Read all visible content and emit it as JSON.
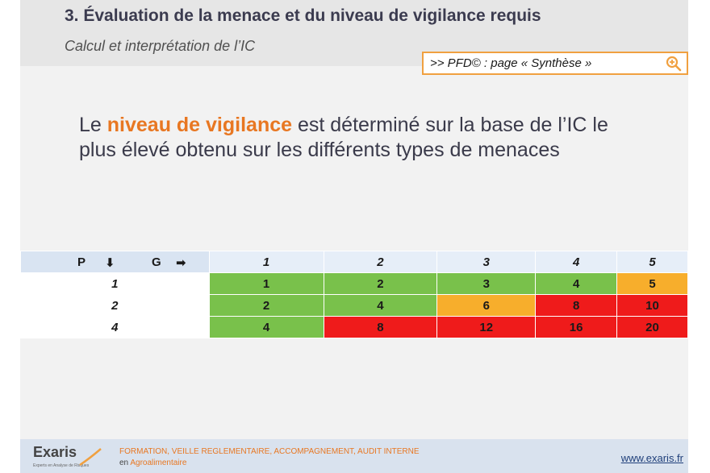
{
  "slide": {
    "title": "3. Évaluation de la menace et du niveau de vigilance requis",
    "subtitle": "Calcul et interprétation de l’IC",
    "reference": ">> PFD© : page « Synthèse »",
    "body": {
      "prefix": "Le ",
      "highlight": "niveau de vigilance",
      "suffix": " est déterminé sur la base de l’IC le plus élevé obtenu sur les différents types de menaces"
    }
  },
  "grid": {
    "corner_p": "P",
    "corner_g": "G",
    "columns": [
      "1",
      "2",
      "3",
      "4",
      "5"
    ],
    "rows": [
      {
        "label": "1",
        "cells": [
          {
            "value": "1",
            "level": "green"
          },
          {
            "value": "2",
            "level": "green"
          },
          {
            "value": "3",
            "level": "green"
          },
          {
            "value": "4",
            "level": "green"
          },
          {
            "value": "5",
            "level": "orange"
          }
        ]
      },
      {
        "label": "2",
        "cells": [
          {
            "value": "2",
            "level": "green"
          },
          {
            "value": "4",
            "level": "green"
          },
          {
            "value": "6",
            "level": "orange"
          },
          {
            "value": "8",
            "level": "red"
          },
          {
            "value": "10",
            "level": "red"
          }
        ]
      },
      {
        "label": "4",
        "cells": [
          {
            "value": "4",
            "level": "green"
          },
          {
            "value": "8",
            "level": "red"
          },
          {
            "value": "12",
            "level": "red"
          },
          {
            "value": "16",
            "level": "red"
          },
          {
            "value": "20",
            "level": "red"
          }
        ]
      }
    ],
    "colors": {
      "green": "#79c14b",
      "orange": "#f7ae2c",
      "red": "#ef1b1b"
    }
  },
  "footer": {
    "logo": "Exaris",
    "logo_tagline": "Experts en Analyse de Risques",
    "line1": "FORMATION, VEILLE REGLEMENTAIRE, ACCOMPAGNEMENT, AUDIT INTERNE",
    "line2_prefix": "en ",
    "line2_highlight": "Agroalimentaire",
    "url": "www.exaris.fr"
  },
  "icons": {
    "zoom": "zoom-in-icon",
    "down_arrow": "arrow-down-icon",
    "right_arrow": "arrow-right-icon"
  }
}
